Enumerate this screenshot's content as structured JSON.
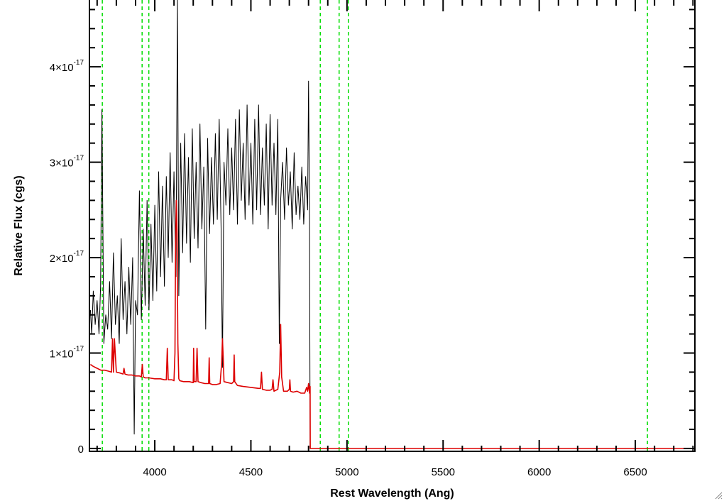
{
  "chart_data": {
    "type": "line",
    "title": "",
    "xlabel": "Rest Wavelength (Ang)",
    "ylabel": "Relative Flux (cgs)",
    "xlim": [
      3660,
      6810
    ],
    "ylim": [
      -3e-19,
      4.7e-17
    ],
    "x_ticks": [
      4000,
      4500,
      5000,
      5500,
      6000,
      6500
    ],
    "x_tick_labels": [
      "4000",
      "4500",
      "5000",
      "5500",
      "6000",
      "6500"
    ],
    "y_ticks": [
      0,
      1e-17,
      2e-17,
      3e-17,
      4e-17
    ],
    "y_tick_labels": [
      {
        "mantissa": "0",
        "exponent": ""
      },
      {
        "mantissa": "1×10",
        "exponent": "-17"
      },
      {
        "mantissa": "2×10",
        "exponent": "-17"
      },
      {
        "mantissa": "3×10",
        "exponent": "-17"
      },
      {
        "mantissa": "4×10",
        "exponent": "-17"
      }
    ],
    "vertical_lines": {
      "color": "#00dd00",
      "style": "dashed",
      "x": [
        3727,
        3934,
        3969,
        4861,
        4959,
        5007,
        6563
      ]
    },
    "series": [
      {
        "color": "#000000",
        "x": [
          3665,
          3672,
          3680,
          3690,
          3700,
          3710,
          3718,
          3725,
          3735,
          3745,
          3755,
          3765,
          3775,
          3785,
          3795,
          3805,
          3815,
          3825,
          3835,
          3845,
          3855,
          3865,
          3875,
          3885,
          3893,
          3900,
          3910,
          3920,
          3930,
          3940,
          3950,
          3960,
          3970,
          3980,
          3990,
          4000,
          4010,
          4020,
          4030,
          4040,
          4050,
          4060,
          4070,
          4080,
          4090,
          4100,
          4110,
          4118,
          4125,
          4135,
          4145,
          4155,
          4165,
          4175,
          4185,
          4195,
          4205,
          4215,
          4225,
          4235,
          4245,
          4255,
          4265,
          4275,
          4285,
          4295,
          4305,
          4315,
          4325,
          4335,
          4345,
          4352,
          4360,
          4370,
          4380,
          4390,
          4400,
          4410,
          4420,
          4430,
          4440,
          4450,
          4460,
          4470,
          4480,
          4490,
          4500,
          4510,
          4520,
          4530,
          4540,
          4550,
          4560,
          4570,
          4580,
          4590,
          4600,
          4610,
          4620,
          4630,
          4640,
          4648,
          4655,
          4665,
          4675,
          4685,
          4695,
          4705,
          4715,
          4725,
          4735,
          4745,
          4755,
          4765,
          4775,
          4785,
          4795,
          4800,
          4805,
          4808
        ],
        "y": [
          1.45e-17,
          1.2e-17,
          1.65e-17,
          1.3e-17,
          1.55e-17,
          1.2e-17,
          1.7e-17,
          3.55e-17,
          1.1e-17,
          1.4e-17,
          1.25e-17,
          1.75e-17,
          1.15e-17,
          2.05e-17,
          1.3e-17,
          1.6e-17,
          1.1e-17,
          2.2e-17,
          1.35e-17,
          1.75e-17,
          1.2e-17,
          1.9e-17,
          1.3e-17,
          2e-17,
          1.5e-18,
          1.55e-17,
          1.4e-17,
          2.7e-17,
          1.35e-17,
          2.3e-17,
          1.5e-17,
          2.6e-17,
          1.45e-17,
          2.35e-17,
          1.55e-17,
          2.55e-17,
          1.65e-17,
          2.9e-17,
          1.8e-17,
          2.75e-17,
          1.7e-17,
          2.85e-17,
          2e-17,
          3.1e-17,
          1.95e-17,
          2.9e-17,
          1.8e-17,
          4.7e-17,
          1.6e-17,
          3.2e-17,
          2.05e-17,
          3.3e-17,
          2.15e-17,
          3.05e-17,
          1.95e-17,
          3.35e-17,
          2.2e-17,
          3e-17,
          2.1e-17,
          3.4e-17,
          2.3e-17,
          2.95e-17,
          1.25e-17,
          3.25e-17,
          2.25e-17,
          3.05e-17,
          2.35e-17,
          3.3e-17,
          2.4e-17,
          3.45e-17,
          2.3e-17,
          8.5e-18,
          3e-17,
          2.55e-17,
          3.35e-17,
          2.45e-17,
          3.15e-17,
          2.5e-17,
          3.45e-17,
          2.35e-17,
          3.55e-17,
          2.6e-17,
          3.2e-17,
          2.4e-17,
          3.6e-17,
          2.55e-17,
          3.2e-17,
          2.35e-17,
          3.45e-17,
          2.5e-17,
          3.6e-17,
          2.45e-17,
          3.15e-17,
          2.55e-17,
          3.4e-17,
          2.3e-17,
          3.5e-17,
          2.55e-17,
          3.2e-17,
          2.45e-17,
          3.45e-17,
          1.1e-17,
          2.6e-17,
          3e-17,
          2.4e-17,
          3.15e-17,
          2.55e-17,
          2.9e-17,
          2.3e-17,
          3.1e-17,
          2.45e-17,
          2.75e-17,
          2.4e-17,
          2.95e-17,
          2.35e-17,
          2.85e-17,
          2.5e-17,
          3.85e-17,
          2.4e-17,
          0.0
        ]
      },
      {
        "color": "#dd0000",
        "x": [
          3665,
          3680,
          3700,
          3720,
          3740,
          3760,
          3775,
          3780,
          3785,
          3790,
          3800,
          3820,
          3835,
          3840,
          3845,
          3860,
          3880,
          3900,
          3920,
          3930,
          3935,
          3940,
          3950,
          3970,
          4000,
          4030,
          4050,
          4060,
          4065,
          4070,
          4090,
          4100,
          4105,
          4108,
          4112,
          4116,
          4120,
          4125,
          4130,
          4150,
          4180,
          4200,
          4202,
          4205,
          4215,
          4220,
          4225,
          4240,
          4260,
          4280,
          4283,
          4286,
          4300,
          4320,
          4340,
          4348,
          4352,
          4356,
          4360,
          4380,
          4400,
          4410,
          4413,
          4416,
          4430,
          4460,
          4500,
          4540,
          4550,
          4555,
          4560,
          4580,
          4600,
          4610,
          4615,
          4620,
          4640,
          4650,
          4655,
          4660,
          4670,
          4690,
          4700,
          4703,
          4706,
          4720,
          4740,
          4760,
          4780,
          4790,
          4795,
          4800,
          4805,
          4808,
          4809,
          4811,
          4850,
          5000,
          5200,
          5500,
          6000,
          6500,
          6810
        ],
        "y": [
          8.8e-18,
          8.6e-18,
          8.4e-18,
          8.2e-18,
          8.2e-18,
          8.1e-18,
          8e-18,
          1.15e-17,
          8e-18,
          1.15e-17,
          8e-18,
          7.9e-18,
          7.8e-18,
          8.4e-18,
          7.8e-18,
          7.7e-18,
          7.7e-18,
          7.6e-18,
          7.6e-18,
          7.5e-18,
          8.8e-18,
          7.5e-18,
          7.4e-18,
          7.4e-18,
          7.3e-18,
          7.3e-18,
          7.2e-18,
          7.2e-18,
          1.05e-17,
          7.2e-18,
          7.2e-18,
          7.1e-18,
          1e-17,
          2.1e-17,
          2.6e-17,
          2.25e-17,
          1.1e-17,
          7.3e-18,
          7.1e-18,
          7e-18,
          7e-18,
          6.9e-18,
          1.05e-17,
          7e-18,
          7e-18,
          1.05e-17,
          7e-18,
          6.9e-18,
          6.8e-18,
          6.8e-18,
          9.5e-18,
          6.8e-18,
          6.7e-18,
          6.7e-18,
          6.8e-18,
          9e-18,
          1.15e-17,
          9.5e-18,
          7e-18,
          6.9e-18,
          6.8e-18,
          7e-18,
          9.8e-18,
          7e-18,
          6.6e-18,
          6.5e-18,
          6.4e-18,
          6.3e-18,
          6.3e-18,
          8e-18,
          6.2e-18,
          6.1e-18,
          6.1e-18,
          6.2e-18,
          7.2e-18,
          6e-18,
          6.2e-18,
          8e-18,
          1.3e-17,
          7.5e-18,
          6e-18,
          6e-18,
          6.2e-18,
          7.2e-18,
          6e-18,
          5.9e-18,
          6e-18,
          5.8e-18,
          5.8e-18,
          6.4e-18,
          6e-18,
          6.8e-18,
          5.8e-18,
          6.5e-18,
          0.0,
          0.0,
          0.0,
          0.0,
          0.0,
          0.0,
          0.0,
          0.0,
          0.0
        ]
      }
    ],
    "grid": false,
    "legend": "none"
  }
}
